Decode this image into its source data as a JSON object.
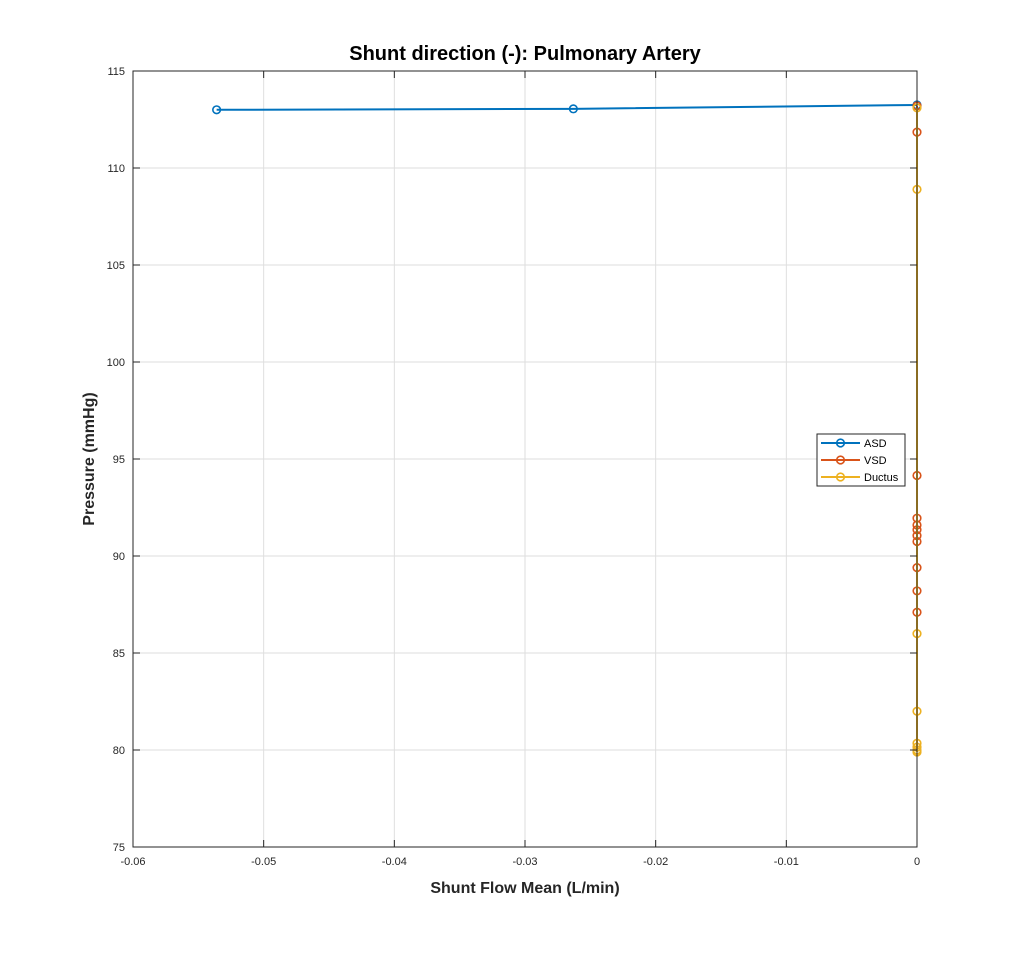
{
  "chart_data": {
    "type": "line",
    "title": "Shunt direction (-): Pulmonary Artery",
    "xlabel": "Shunt Flow Mean (L/min)",
    "ylabel": "Pressure (mmHg)",
    "xlim": [
      -0.06,
      0
    ],
    "ylim": [
      75,
      115
    ],
    "x_ticks": [
      -0.06,
      -0.05,
      -0.04,
      -0.03,
      -0.02,
      -0.01,
      0
    ],
    "x_tick_labels": [
      "-0.06",
      "-0.05",
      "-0.04",
      "-0.03",
      "-0.02",
      "-0.01",
      "0"
    ],
    "y_ticks": [
      75,
      80,
      85,
      90,
      95,
      100,
      105,
      110,
      115
    ],
    "y_tick_labels": [
      "75",
      "80",
      "85",
      "90",
      "95",
      "100",
      "105",
      "110",
      "115"
    ],
    "grid": true,
    "legend_position": "right",
    "series": [
      {
        "name": "ASD",
        "color": "#0072BD",
        "marker": "circle",
        "x": [
          -0.0536,
          -0.0263,
          0
        ],
        "y": [
          113.0,
          113.05,
          113.25
        ]
      },
      {
        "name": "VSD",
        "color": "#D95319",
        "marker": "circle",
        "x": [
          0,
          0,
          0,
          0,
          0,
          0,
          0,
          0,
          0,
          0,
          0
        ],
        "y": [
          113.2,
          111.85,
          94.15,
          91.95,
          91.6,
          91.35,
          91.05,
          90.75,
          89.4,
          88.2,
          87.1
        ]
      },
      {
        "name": "Ductus",
        "color": "#EDB120",
        "marker": "circle",
        "x": [
          0,
          0,
          0,
          0,
          0,
          0,
          0,
          0
        ],
        "y": [
          113.1,
          108.9,
          86.0,
          82.0,
          80.35,
          80.15,
          80.0,
          79.9
        ]
      }
    ]
  }
}
